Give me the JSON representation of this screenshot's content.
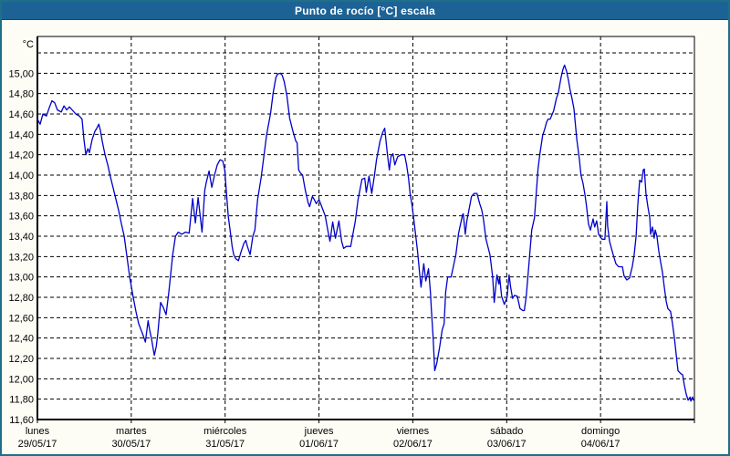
{
  "window": {
    "title": "Punto de rocío [°C] escala"
  },
  "colors": {
    "titlebar_bg": "#1D6295",
    "titlebar_text": "#FFFFFF",
    "window_border": "#1E6F88",
    "content_bg": "#FDFDF6",
    "plot_bg": "#FFFFFF",
    "axis": "#000000",
    "grid": "#000000",
    "tick_text": "#000000",
    "line": "#0000C8"
  },
  "chart_data": {
    "type": "line",
    "title": "Punto de rocío [°C] escala",
    "y_unit": "°C",
    "ylim": [
      11.6,
      15.35
    ],
    "x_hours_range": [
      0,
      168
    ],
    "grid": "dashed",
    "legend": "none",
    "yticks": [
      {
        "v": 15.0,
        "label": "15,00"
      },
      {
        "v": 14.8,
        "label": "14,80"
      },
      {
        "v": 14.6,
        "label": "14,60"
      },
      {
        "v": 14.4,
        "label": "14,40"
      },
      {
        "v": 14.2,
        "label": "14,20"
      },
      {
        "v": 14.0,
        "label": "14,00"
      },
      {
        "v": 13.8,
        "label": "13,80"
      },
      {
        "v": 13.6,
        "label": "13,60"
      },
      {
        "v": 13.4,
        "label": "13,40"
      },
      {
        "v": 13.2,
        "label": "13,20"
      },
      {
        "v": 13.0,
        "label": "13,00"
      },
      {
        "v": 12.8,
        "label": "12,80"
      },
      {
        "v": 12.6,
        "label": "12,60"
      },
      {
        "v": 12.4,
        "label": "12,40"
      },
      {
        "v": 12.2,
        "label": "12,20"
      },
      {
        "v": 12.0,
        "label": "12,00"
      },
      {
        "v": 11.8,
        "label": "11,80"
      },
      {
        "v": 11.6,
        "label": "11,60"
      }
    ],
    "ygrid_values": [
      11.8,
      12.0,
      12.2,
      12.4,
      12.6,
      12.8,
      13.0,
      13.2,
      13.4,
      13.6,
      13.8,
      14.0,
      14.2,
      14.4,
      14.6,
      14.8,
      15.0,
      15.2
    ],
    "x_days": [
      {
        "name": "lunes",
        "date": "29/05/17",
        "hour": 0
      },
      {
        "name": "martes",
        "date": "30/05/17",
        "hour": 24
      },
      {
        "name": "miércoles",
        "date": "31/05/17",
        "hour": 48
      },
      {
        "name": "jueves",
        "date": "01/06/17",
        "hour": 72
      },
      {
        "name": "viernes",
        "date": "02/06/17",
        "hour": 96
      },
      {
        "name": "sábado",
        "date": "03/06/17",
        "hour": 120
      },
      {
        "name": "domingo",
        "date": "04/06/17",
        "hour": 144
      }
    ],
    "series": [
      {
        "name": "Punto de rocío",
        "color": "#0000C8",
        "points": [
          [
            0,
            14.55
          ],
          [
            0.7,
            14.5
          ],
          [
            1.4,
            14.6
          ],
          [
            2.3,
            14.58
          ],
          [
            3,
            14.66
          ],
          [
            3.7,
            14.73
          ],
          [
            4.4,
            14.71
          ],
          [
            5.1,
            14.64
          ],
          [
            6.1,
            14.62
          ],
          [
            6.8,
            14.68
          ],
          [
            7.5,
            14.64
          ],
          [
            8.2,
            14.67
          ],
          [
            8.9,
            14.64
          ],
          [
            9.8,
            14.6
          ],
          [
            10.7,
            14.58
          ],
          [
            11.4,
            14.55
          ],
          [
            11.9,
            14.35
          ],
          [
            12.4,
            14.2
          ],
          [
            12.9,
            14.26
          ],
          [
            13.3,
            14.22
          ],
          [
            14,
            14.35
          ],
          [
            14.7,
            14.43
          ],
          [
            15.2,
            14.46
          ],
          [
            15.7,
            14.5
          ],
          [
            16.1,
            14.44
          ],
          [
            16.6,
            14.33
          ],
          [
            17.3,
            14.2
          ],
          [
            18,
            14.1
          ],
          [
            18.7,
            13.98
          ],
          [
            19.4,
            13.87
          ],
          [
            20.1,
            13.76
          ],
          [
            20.8,
            13.65
          ],
          [
            21.5,
            13.52
          ],
          [
            22.2,
            13.4
          ],
          [
            22.9,
            13.2
          ],
          [
            23.6,
            13.0
          ],
          [
            24.5,
            12.8
          ],
          [
            25.2,
            12.66
          ],
          [
            25.9,
            12.54
          ],
          [
            26.6,
            12.47
          ],
          [
            27.1,
            12.42
          ],
          [
            27.6,
            12.36
          ],
          [
            28.3,
            12.57
          ],
          [
            28.7,
            12.48
          ],
          [
            29.2,
            12.39
          ],
          [
            29.9,
            12.23
          ],
          [
            30.4,
            12.32
          ],
          [
            30.8,
            12.45
          ],
          [
            31.5,
            12.75
          ],
          [
            32.2,
            12.7
          ],
          [
            32.9,
            12.63
          ],
          [
            33.6,
            12.85
          ],
          [
            34.6,
            13.22
          ],
          [
            35.3,
            13.4
          ],
          [
            36,
            13.44
          ],
          [
            36.9,
            13.42
          ],
          [
            37.9,
            13.44
          ],
          [
            38.8,
            13.43
          ],
          [
            39.7,
            13.77
          ],
          [
            40.4,
            13.53
          ],
          [
            41.1,
            13.78
          ],
          [
            42.1,
            13.44
          ],
          [
            42.8,
            13.85
          ],
          [
            43.2,
            13.93
          ],
          [
            43.9,
            14.04
          ],
          [
            44.6,
            13.88
          ],
          [
            45.3,
            14.0
          ],
          [
            46,
            14.1
          ],
          [
            46.7,
            14.15
          ],
          [
            47.4,
            14.14
          ],
          [
            47.9,
            14.05
          ],
          [
            48.4,
            13.8
          ],
          [
            48.8,
            13.6
          ],
          [
            49.3,
            13.45
          ],
          [
            49.8,
            13.3
          ],
          [
            50.2,
            13.22
          ],
          [
            50.7,
            13.18
          ],
          [
            51.4,
            13.16
          ],
          [
            52.1,
            13.25
          ],
          [
            52.8,
            13.33
          ],
          [
            53.3,
            13.36
          ],
          [
            53.7,
            13.3
          ],
          [
            54.4,
            13.22
          ],
          [
            55.1,
            13.4
          ],
          [
            55.6,
            13.46
          ],
          [
            56.3,
            13.76
          ],
          [
            57.2,
            13.97
          ],
          [
            57.9,
            14.18
          ],
          [
            58.6,
            14.39
          ],
          [
            59.6,
            14.6
          ],
          [
            60.3,
            14.81
          ],
          [
            61,
            14.96
          ],
          [
            61.4,
            14.99
          ],
          [
            62.1,
            15.0
          ],
          [
            62.6,
            14.98
          ],
          [
            63.1,
            14.92
          ],
          [
            63.8,
            14.78
          ],
          [
            64.5,
            14.56
          ],
          [
            65.4,
            14.42
          ],
          [
            66.1,
            14.33
          ],
          [
            66.4,
            14.32
          ],
          [
            66.8,
            14.05
          ],
          [
            67.3,
            14.02
          ],
          [
            67.8,
            14.0
          ],
          [
            68.5,
            13.85
          ],
          [
            69.2,
            13.73
          ],
          [
            69.6,
            13.69
          ],
          [
            70.3,
            13.79
          ],
          [
            70.8,
            13.76
          ],
          [
            71.3,
            13.72
          ],
          [
            72,
            13.76
          ],
          [
            72.7,
            13.69
          ],
          [
            73.6,
            13.6
          ],
          [
            74.3,
            13.45
          ],
          [
            74.8,
            13.35
          ],
          [
            75.5,
            13.54
          ],
          [
            76.2,
            13.38
          ],
          [
            77.1,
            13.55
          ],
          [
            77.8,
            13.35
          ],
          [
            78.3,
            13.28
          ],
          [
            79,
            13.3
          ],
          [
            80.1,
            13.3
          ],
          [
            81.3,
            13.55
          ],
          [
            82,
            13.76
          ],
          [
            83,
            13.96
          ],
          [
            83.7,
            13.97
          ],
          [
            84.1,
            13.83
          ],
          [
            84.8,
            13.99
          ],
          [
            85.5,
            13.82
          ],
          [
            86.2,
            14.0
          ],
          [
            86.7,
            14.15
          ],
          [
            87.6,
            14.33
          ],
          [
            88.3,
            14.42
          ],
          [
            88.8,
            14.46
          ],
          [
            89.5,
            14.2
          ],
          [
            90,
            14.05
          ],
          [
            90.4,
            14.18
          ],
          [
            90.9,
            14.21
          ],
          [
            91.4,
            14.1
          ],
          [
            92.1,
            14.18
          ],
          [
            93,
            14.2
          ],
          [
            93.9,
            14.2
          ],
          [
            94.4,
            14.1
          ],
          [
            94.9,
            13.97
          ],
          [
            95.3,
            13.82
          ],
          [
            95.8,
            13.7
          ],
          [
            96.3,
            13.55
          ],
          [
            96.7,
            13.42
          ],
          [
            97.2,
            13.25
          ],
          [
            97.7,
            13.05
          ],
          [
            98.1,
            12.9
          ],
          [
            98.8,
            13.13
          ],
          [
            99.3,
            12.96
          ],
          [
            100,
            13.08
          ],
          [
            100.5,
            12.85
          ],
          [
            100.7,
            12.7
          ],
          [
            101.2,
            12.4
          ],
          [
            101.6,
            12.08
          ],
          [
            102.1,
            12.15
          ],
          [
            102.8,
            12.3
          ],
          [
            103.5,
            12.48
          ],
          [
            104,
            12.54
          ],
          [
            104.4,
            12.85
          ],
          [
            104.9,
            13.0
          ],
          [
            105.8,
            13.0
          ],
          [
            107,
            13.22
          ],
          [
            107.7,
            13.43
          ],
          [
            108.7,
            13.61
          ],
          [
            108.9,
            13.62
          ],
          [
            109.4,
            13.42
          ],
          [
            109.8,
            13.55
          ],
          [
            110.5,
            13.69
          ],
          [
            111,
            13.79
          ],
          [
            111.7,
            13.82
          ],
          [
            112.4,
            13.82
          ],
          [
            113.1,
            13.72
          ],
          [
            113.6,
            13.66
          ],
          [
            114,
            13.58
          ],
          [
            114.7,
            13.37
          ],
          [
            115.7,
            13.22
          ],
          [
            116.4,
            13.0
          ],
          [
            116.8,
            12.75
          ],
          [
            117.5,
            13.02
          ],
          [
            118,
            12.93
          ],
          [
            118.2,
            13.0
          ],
          [
            118.7,
            12.81
          ],
          [
            119.4,
            12.73
          ],
          [
            120.1,
            12.8
          ],
          [
            120.6,
            13.02
          ],
          [
            121,
            12.9
          ],
          [
            121.5,
            12.79
          ],
          [
            122,
            12.82
          ],
          [
            122.7,
            12.81
          ],
          [
            123.4,
            12.69
          ],
          [
            124.1,
            12.67
          ],
          [
            124.5,
            12.67
          ],
          [
            125,
            12.81
          ],
          [
            125.7,
            13.13
          ],
          [
            126.4,
            13.46
          ],
          [
            127.1,
            13.58
          ],
          [
            127.6,
            13.85
          ],
          [
            128,
            14.06
          ],
          [
            128.5,
            14.21
          ],
          [
            129.2,
            14.39
          ],
          [
            129.7,
            14.45
          ],
          [
            130.2,
            14.52
          ],
          [
            130.6,
            14.55
          ],
          [
            131.1,
            14.55
          ],
          [
            132,
            14.63
          ],
          [
            132.7,
            14.75
          ],
          [
            133.2,
            14.81
          ],
          [
            133.9,
            14.96
          ],
          [
            134.4,
            15.04
          ],
          [
            134.8,
            15.08
          ],
          [
            135.3,
            15.02
          ],
          [
            135.8,
            14.93
          ],
          [
            136.2,
            14.84
          ],
          [
            136.7,
            14.75
          ],
          [
            137.2,
            14.65
          ],
          [
            137.9,
            14.36
          ],
          [
            138.6,
            14.15
          ],
          [
            139,
            14.0
          ],
          [
            139.5,
            13.92
          ],
          [
            140,
            13.81
          ],
          [
            140.4,
            13.7
          ],
          [
            140.9,
            13.52
          ],
          [
            141.4,
            13.46
          ],
          [
            142.1,
            13.57
          ],
          [
            142.5,
            13.49
          ],
          [
            143,
            13.55
          ],
          [
            143.5,
            13.42
          ],
          [
            144,
            13.39
          ],
          [
            144.4,
            13.37
          ],
          [
            145.1,
            13.37
          ],
          [
            145.6,
            13.74
          ],
          [
            145.8,
            13.5
          ],
          [
            146.3,
            13.35
          ],
          [
            146.8,
            13.28
          ],
          [
            147.2,
            13.22
          ],
          [
            147.9,
            13.13
          ],
          [
            148.6,
            13.1
          ],
          [
            149.6,
            13.1
          ],
          [
            150,
            13.01
          ],
          [
            150.7,
            12.97
          ],
          [
            151.4,
            12.99
          ],
          [
            152.1,
            13.1
          ],
          [
            152.6,
            13.22
          ],
          [
            153.1,
            13.4
          ],
          [
            153.5,
            13.7
          ],
          [
            154,
            13.95
          ],
          [
            154.5,
            13.93
          ],
          [
            154.9,
            14.05
          ],
          [
            155.2,
            14.06
          ],
          [
            155.6,
            13.82
          ],
          [
            156.1,
            13.69
          ],
          [
            156.6,
            13.58
          ],
          [
            156.8,
            13.42
          ],
          [
            157.3,
            13.49
          ],
          [
            157.7,
            13.38
          ],
          [
            158,
            13.46
          ],
          [
            158.4,
            13.4
          ],
          [
            158.9,
            13.25
          ],
          [
            159.4,
            13.14
          ],
          [
            159.8,
            13.05
          ],
          [
            160.3,
            12.9
          ],
          [
            160.8,
            12.76
          ],
          [
            161.2,
            12.69
          ],
          [
            161.9,
            12.66
          ],
          [
            162.4,
            12.54
          ],
          [
            162.9,
            12.4
          ],
          [
            163.3,
            12.25
          ],
          [
            163.8,
            12.08
          ],
          [
            164.5,
            12.05
          ],
          [
            165,
            12.04
          ],
          [
            165.4,
            11.94
          ],
          [
            165.9,
            11.85
          ],
          [
            166.4,
            11.79
          ],
          [
            166.9,
            11.82
          ],
          [
            167.1,
            11.78
          ],
          [
            167.5,
            11.82
          ],
          [
            167.8,
            11.79
          ]
        ]
      }
    ]
  }
}
